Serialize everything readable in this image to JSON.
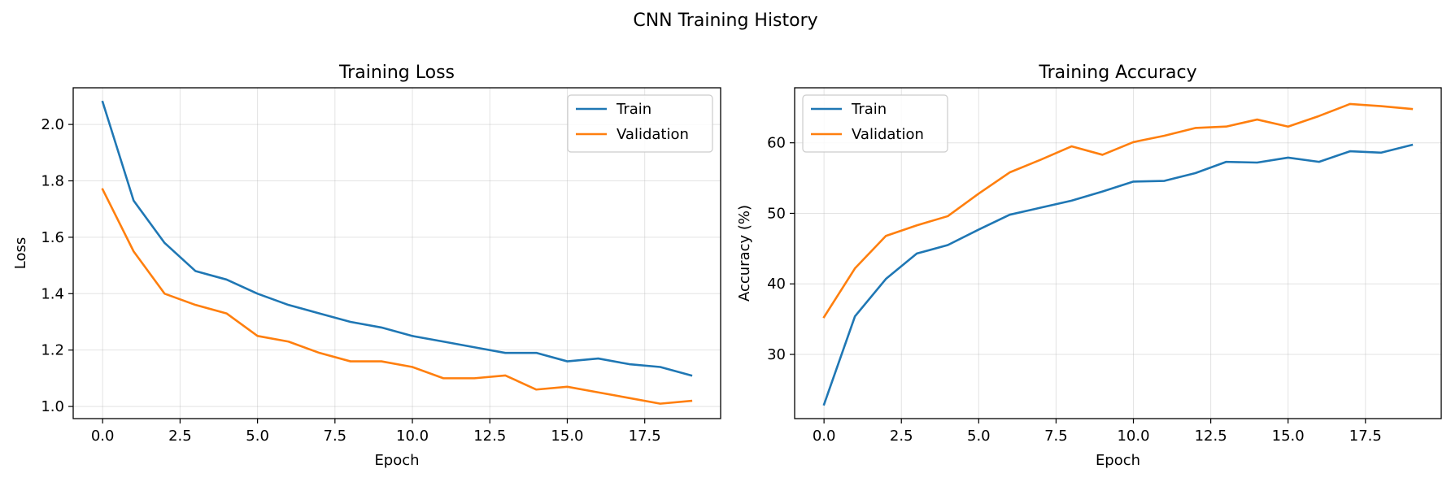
{
  "figure": {
    "suptitle": "CNN Training History"
  },
  "colors": {
    "train": "#1f77b4",
    "validation": "#ff7f0e",
    "grid": "#b0b0b0",
    "axes": "#000000"
  },
  "chart_data": [
    {
      "type": "line",
      "title": "Training Loss",
      "xlabel": "Epoch",
      "ylabel": "Loss",
      "xlim": [
        -0.95,
        19.95
      ],
      "ylim": [
        0.957,
        2.13
      ],
      "xticks": [
        0.0,
        2.5,
        5.0,
        7.5,
        10.0,
        12.5,
        15.0,
        17.5
      ],
      "xtick_labels": [
        "0.0",
        "2.5",
        "5.0",
        "7.5",
        "10.0",
        "12.5",
        "15.0",
        "17.5"
      ],
      "yticks": [
        1.0,
        1.2,
        1.4,
        1.6,
        1.8,
        2.0
      ],
      "ytick_labels": [
        "1.0",
        "1.2",
        "1.4",
        "1.6",
        "1.8",
        "2.0"
      ],
      "grid": true,
      "legend_position": "upper right",
      "x": [
        0,
        1,
        2,
        3,
        4,
        5,
        6,
        7,
        8,
        9,
        10,
        11,
        12,
        13,
        14,
        15,
        16,
        17,
        18,
        19
      ],
      "series": [
        {
          "name": "Train",
          "color": "#1f77b4",
          "values": [
            2.08,
            1.73,
            1.58,
            1.48,
            1.45,
            1.4,
            1.36,
            1.33,
            1.3,
            1.28,
            1.25,
            1.23,
            1.21,
            1.19,
            1.19,
            1.16,
            1.17,
            1.15,
            1.14,
            1.11
          ]
        },
        {
          "name": "Validation",
          "color": "#ff7f0e",
          "values": [
            1.77,
            1.55,
            1.4,
            1.36,
            1.33,
            1.25,
            1.23,
            1.19,
            1.16,
            1.16,
            1.14,
            1.1,
            1.1,
            1.11,
            1.06,
            1.07,
            1.05,
            1.03,
            1.01,
            1.02
          ]
        }
      ]
    },
    {
      "type": "line",
      "title": "Training Accuracy",
      "xlabel": "Epoch",
      "ylabel": "Accuracy (%)",
      "xlim": [
        -0.95,
        19.95
      ],
      "ylim": [
        20.9,
        67.8
      ],
      "xticks": [
        0.0,
        2.5,
        5.0,
        7.5,
        10.0,
        12.5,
        15.0,
        17.5
      ],
      "xtick_labels": [
        "0.0",
        "2.5",
        "5.0",
        "7.5",
        "10.0",
        "12.5",
        "15.0",
        "17.5"
      ],
      "yticks": [
        30,
        40,
        50,
        60
      ],
      "ytick_labels": [
        "30",
        "40",
        "50",
        "60"
      ],
      "grid": true,
      "legend_position": "upper left",
      "x": [
        0,
        1,
        2,
        3,
        4,
        5,
        6,
        7,
        8,
        9,
        10,
        11,
        12,
        13,
        14,
        15,
        16,
        17,
        18,
        19
      ],
      "series": [
        {
          "name": "Train",
          "color": "#1f77b4",
          "values": [
            22.9,
            35.4,
            40.7,
            44.3,
            45.5,
            47.7,
            49.8,
            50.8,
            51.8,
            53.1,
            54.5,
            54.6,
            55.7,
            57.3,
            57.2,
            57.9,
            57.3,
            58.8,
            58.6,
            59.7
          ]
        },
        {
          "name": "Validation",
          "color": "#ff7f0e",
          "values": [
            35.3,
            42.2,
            46.8,
            48.3,
            49.6,
            52.8,
            55.8,
            57.6,
            59.5,
            58.3,
            60.1,
            61.0,
            62.1,
            62.3,
            63.3,
            62.3,
            63.8,
            65.5,
            65.2,
            64.8
          ]
        }
      ]
    }
  ]
}
